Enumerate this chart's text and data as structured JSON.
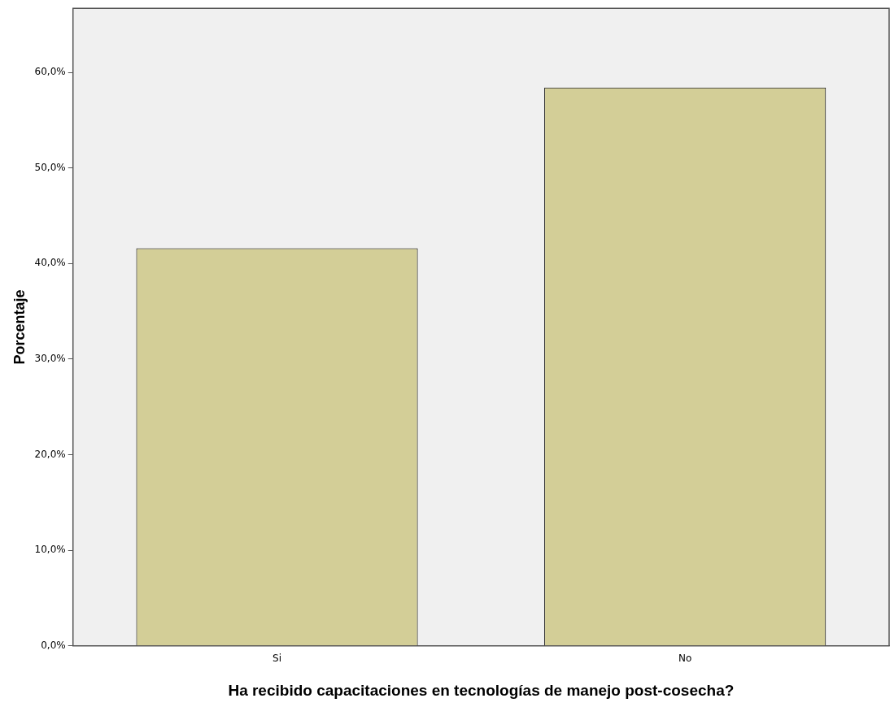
{
  "chart_data": {
    "type": "bar",
    "xlabel": "Ha recibido capacitaciones en tecnologías de manejo post-cosecha?",
    "ylabel": "Porcentaje",
    "categories": [
      "Si",
      "No"
    ],
    "values": [
      41.6,
      58.4
    ],
    "color": "#d3ce97",
    "ylim": [
      0,
      66.7
    ],
    "yticks": [
      {
        "value": 0,
        "label": "0,0%"
      },
      {
        "value": 10,
        "label": "10,0%"
      },
      {
        "value": 20,
        "label": "20,0%"
      },
      {
        "value": 30,
        "label": "30,0%"
      },
      {
        "value": 40,
        "label": "40,0%"
      },
      {
        "value": 50,
        "label": "50,0%"
      },
      {
        "value": 60,
        "label": "60,0%"
      }
    ],
    "grid": false,
    "legend": false
  }
}
